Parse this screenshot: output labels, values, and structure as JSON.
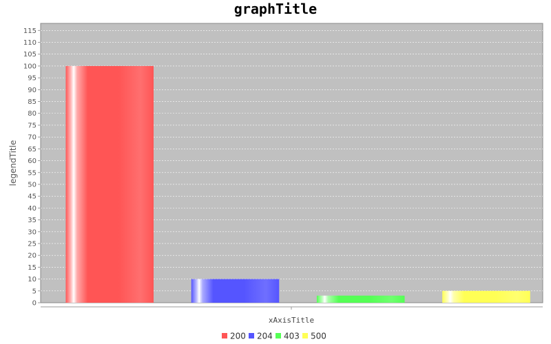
{
  "chart_data": {
    "type": "bar",
    "title": "graphTitle",
    "xlabel": "xAxisTitle",
    "ylabel": "legendTitle",
    "ylim": [
      0,
      118
    ],
    "ytick_step": 5,
    "grid": true,
    "legend_position": "bottom",
    "series": [
      {
        "name": "200",
        "value": 100,
        "color": "#ff5555"
      },
      {
        "name": "204",
        "value": 10,
        "color": "#5555ff"
      },
      {
        "name": "403",
        "value": 3,
        "color": "#55ff55"
      },
      {
        "name": "500",
        "value": 5,
        "color": "#ffff55"
      }
    ]
  }
}
